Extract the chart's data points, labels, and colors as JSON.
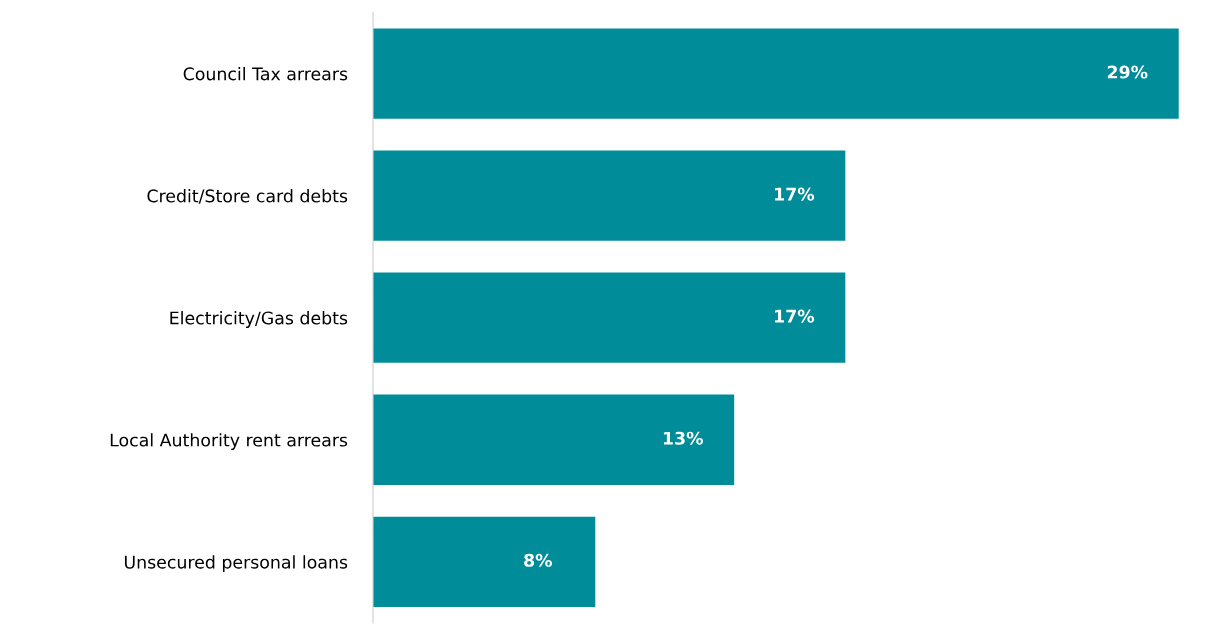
{
  "chart_data": {
    "type": "bar",
    "orientation": "horizontal",
    "categories": [
      "Council Tax arrears",
      "Credit/Store card debts",
      "Electricity/Gas debts",
      "Local Authority rent arrears",
      "Unsecured personal loans"
    ],
    "values": [
      29,
      17,
      17,
      13,
      8
    ],
    "value_labels": [
      "29%",
      "17%",
      "17%",
      "13%",
      "8%"
    ],
    "color": "#008c99",
    "grid": false,
    "legend": false
  }
}
